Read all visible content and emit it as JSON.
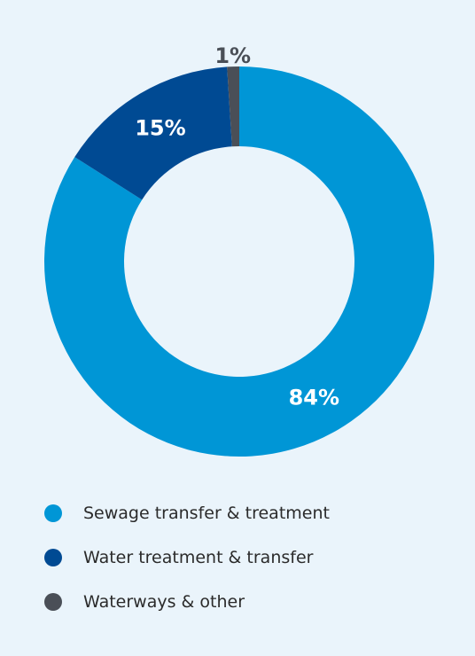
{
  "chart_data": {
    "type": "pie",
    "categories": [
      "Sewage transfer & treatment",
      "Water treatment & transfer",
      "Waterways & other"
    ],
    "values": [
      84,
      15,
      1
    ],
    "labels": [
      "84%",
      "15%",
      "1%"
    ],
    "colors": [
      "#0096d6",
      "#004a93",
      "#4a4f57"
    ],
    "label_colors": [
      "#ffffff",
      "#ffffff",
      "#4a4f57"
    ],
    "donut": true,
    "legend_placement": "bottom"
  }
}
